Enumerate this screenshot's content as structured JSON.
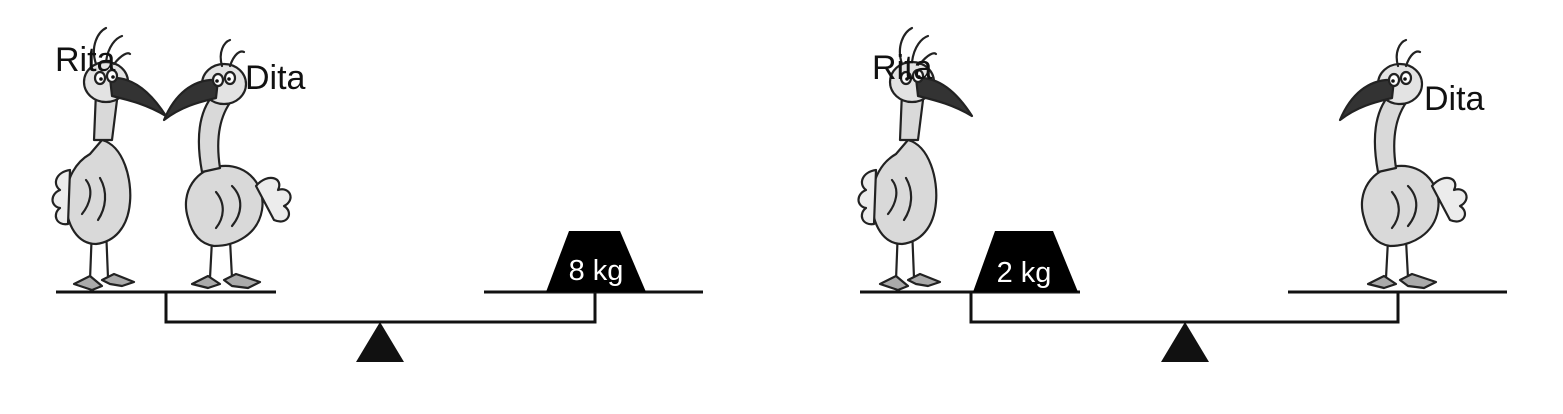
{
  "scales": [
    {
      "left_pan": {
        "birds": [
          "Rita",
          "Dita"
        ],
        "weights": []
      },
      "right_pan": {
        "birds": [],
        "weights": [
          "8 kg"
        ]
      }
    },
    {
      "left_pan": {
        "birds": [
          "Rita"
        ],
        "weights": [
          "2 kg"
        ]
      },
      "right_pan": {
        "birds": [
          "Dita"
        ],
        "weights": []
      }
    }
  ],
  "labels": {
    "scale1_rita": "Rita",
    "scale1_dita": "Dita",
    "scale1_weight": "8 kg",
    "scale2_rita": "Rita",
    "scale2_dita": "Dita",
    "scale2_weight": "2 kg"
  },
  "colors": {
    "ink": "#111111",
    "bird_fill": "#d9d9d9",
    "beak": "#333333",
    "weight_fill": "#000000",
    "weight_text": "#ffffff"
  }
}
